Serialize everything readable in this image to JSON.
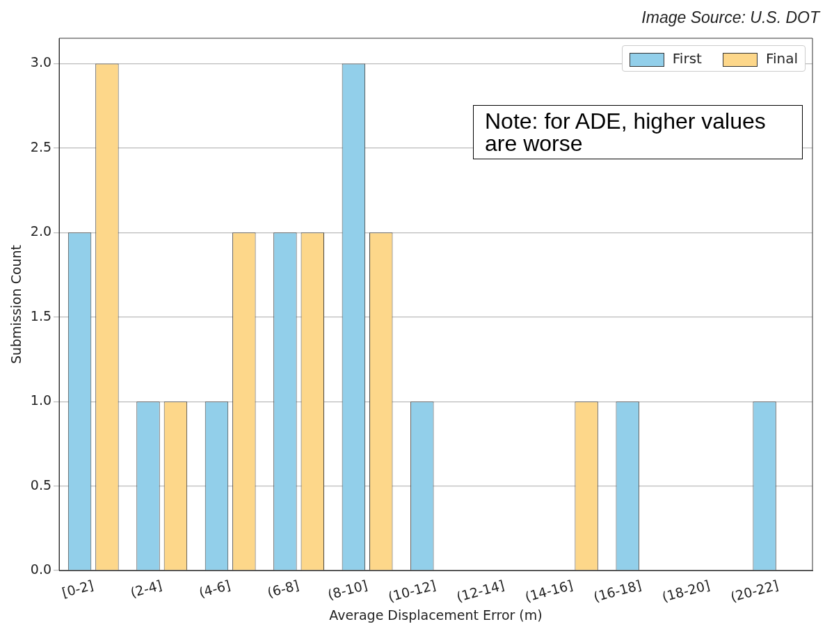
{
  "chart_data": {
    "type": "bar",
    "xlabel": "Average Displacement Error (m)",
    "ylabel": "Submission Count",
    "categories": [
      "[0-2]",
      "(2-4]",
      "(4-6]",
      "(6-8]",
      "(8-10]",
      "(10-12]",
      "(12-14]",
      "(14-16]",
      "(16-18]",
      "(18-20]",
      "(20-22]"
    ],
    "series": [
      {
        "name": "First",
        "color": "#92cfea",
        "values": [
          2,
          1,
          1,
          2,
          3,
          1,
          0,
          0,
          1,
          0,
          1
        ]
      },
      {
        "name": "Final",
        "color": "#fdd78a",
        "values": [
          3,
          1,
          2,
          2,
          2,
          0,
          0,
          1,
          0,
          0,
          0
        ]
      }
    ],
    "ylim": [
      0,
      3.15
    ],
    "yticks": [
      {
        "value": 0,
        "label": "0.0"
      },
      {
        "value": 0.5,
        "label": "0.5"
      },
      {
        "value": 1,
        "label": "1.0"
      },
      {
        "value": 1.5,
        "label": "1.5"
      },
      {
        "value": 2,
        "label": "2.0"
      },
      {
        "value": 2.5,
        "label": "2.5"
      },
      {
        "value": 3,
        "label": "3.0"
      }
    ],
    "grid": "y",
    "legend": "top right",
    "annotations": [
      "Image Source: U.S. DOT",
      "Note: for ADE, higher values are worse"
    ]
  }
}
